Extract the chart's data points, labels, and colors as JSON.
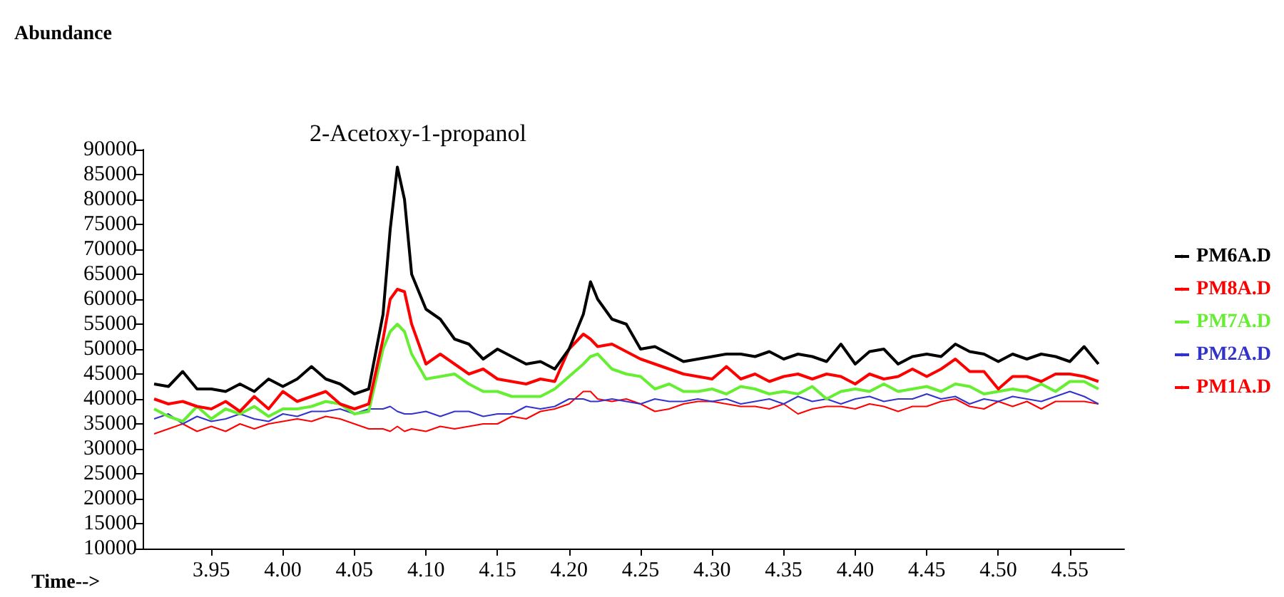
{
  "chart_data": {
    "type": "line",
    "title": "2-Acetoxy-1-propanol",
    "xlabel": "Time-->",
    "ylabel": "Abundance",
    "x": [
      3.91,
      3.92,
      3.93,
      3.94,
      3.95,
      3.96,
      3.97,
      3.98,
      3.99,
      4.0,
      4.01,
      4.02,
      4.03,
      4.04,
      4.05,
      4.06,
      4.07,
      4.075,
      4.08,
      4.085,
      4.09,
      4.1,
      4.11,
      4.12,
      4.13,
      4.14,
      4.15,
      4.16,
      4.17,
      4.18,
      4.19,
      4.2,
      4.21,
      4.215,
      4.22,
      4.23,
      4.24,
      4.25,
      4.26,
      4.27,
      4.28,
      4.29,
      4.3,
      4.31,
      4.32,
      4.33,
      4.34,
      4.35,
      4.36,
      4.37,
      4.38,
      4.39,
      4.4,
      4.41,
      4.42,
      4.43,
      4.44,
      4.45,
      4.46,
      4.47,
      4.48,
      4.49,
      4.5,
      4.51,
      4.52,
      4.53,
      4.54,
      4.55,
      4.56,
      4.57
    ],
    "series": [
      {
        "name": "PM6A.D",
        "color": "#000000",
        "values": [
          43000,
          42500,
          45500,
          42000,
          42000,
          41500,
          43000,
          41500,
          44000,
          42500,
          44000,
          46500,
          44000,
          43000,
          41000,
          42000,
          57000,
          74000,
          86500,
          80000,
          65000,
          58000,
          56000,
          52000,
          51000,
          48000,
          50000,
          48500,
          47000,
          47500,
          46000,
          50000,
          57000,
          63500,
          60000,
          56000,
          55000,
          50000,
          50500,
          49000,
          47500,
          48000,
          48500,
          49000,
          49000,
          48500,
          49500,
          48000,
          49000,
          48500,
          47500,
          51000,
          47000,
          49500,
          50000,
          47000,
          48500,
          49000,
          48500,
          51000,
          49500,
          49000,
          47500,
          49000,
          48000,
          49000,
          48500,
          47500,
          50500,
          47000
        ]
      },
      {
        "name": "PM8A.D",
        "color": "#ff0000",
        "values": [
          40000,
          39000,
          39500,
          38500,
          38000,
          39500,
          37500,
          40500,
          38000,
          41500,
          39500,
          40500,
          41500,
          39000,
          38000,
          39000,
          52000,
          60000,
          62000,
          61500,
          55000,
          47000,
          49000,
          47000,
          45000,
          46000,
          44000,
          43500,
          43000,
          44000,
          43500,
          50000,
          53000,
          52000,
          50500,
          51000,
          49500,
          48000,
          47000,
          46000,
          45000,
          44500,
          44000,
          46500,
          44000,
          45000,
          43500,
          44500,
          45000,
          44000,
          45000,
          44500,
          43000,
          45000,
          44000,
          44500,
          46000,
          44500,
          46000,
          48000,
          45500,
          45500,
          42000,
          44500,
          44500,
          43500,
          45000,
          45000,
          44500,
          43500
        ]
      },
      {
        "name": "PM7A.D",
        "color": "#66ee33",
        "values": [
          38000,
          36500,
          35500,
          38500,
          36000,
          38000,
          37000,
          38500,
          36500,
          38000,
          38000,
          38500,
          39500,
          39000,
          37000,
          37500,
          50000,
          53500,
          55000,
          53500,
          49000,
          44000,
          44500,
          45000,
          43000,
          41500,
          41500,
          40500,
          40500,
          40500,
          42000,
          44500,
          47000,
          48500,
          49000,
          46000,
          45000,
          44500,
          42000,
          43000,
          41500,
          41500,
          42000,
          41000,
          42500,
          42000,
          41000,
          41500,
          41000,
          42500,
          40000,
          41500,
          42000,
          41500,
          43000,
          41500,
          42000,
          42500,
          41500,
          43000,
          42500,
          41000,
          41500,
          42000,
          41500,
          43000,
          41500,
          43500,
          43500,
          42000
        ]
      },
      {
        "name": "PM2A.D",
        "color": "#3333cc",
        "values": [
          36000,
          37000,
          35000,
          36500,
          35500,
          36000,
          37000,
          36000,
          35500,
          37000,
          36500,
          37500,
          37500,
          38000,
          37000,
          38000,
          38000,
          38500,
          37500,
          37000,
          37000,
          37500,
          36500,
          37500,
          37500,
          36500,
          37000,
          37000,
          38500,
          38000,
          38500,
          40000,
          40000,
          39500,
          39500,
          40000,
          39500,
          39000,
          40000,
          39500,
          39500,
          40000,
          39500,
          40000,
          39000,
          39500,
          40000,
          39000,
          40500,
          39500,
          40000,
          39000,
          40000,
          40500,
          39500,
          40000,
          40000,
          41000,
          40000,
          40500,
          39000,
          40000,
          39500,
          40500,
          40000,
          39500,
          40500,
          41500,
          40500,
          39000
        ]
      },
      {
        "name": "PM1A.D",
        "color": "#ff0000",
        "values": [
          33000,
          34000,
          35000,
          33500,
          34500,
          33500,
          35000,
          34000,
          35000,
          35500,
          36000,
          35500,
          36500,
          36000,
          35000,
          34000,
          34000,
          33500,
          34500,
          33500,
          34000,
          33500,
          34500,
          34000,
          34500,
          35000,
          35000,
          36500,
          36000,
          37500,
          38000,
          39000,
          41500,
          41500,
          40000,
          39500,
          40000,
          39000,
          37500,
          38000,
          39000,
          39500,
          39500,
          39000,
          38500,
          38500,
          38000,
          39000,
          37000,
          38000,
          38500,
          38500,
          38000,
          39000,
          38500,
          37500,
          38500,
          38500,
          39500,
          40000,
          38500,
          38000,
          39500,
          38500,
          39500,
          38000,
          39500,
          39500,
          39500,
          39000
        ]
      }
    ],
    "xlim": [
      3.902,
      4.588
    ],
    "xticks": [
      3.95,
      {
        "value": 4.0,
        "label": "4.00"
      },
      4.05,
      {
        "value": 4.1,
        "label": "4.10"
      },
      4.15,
      {
        "value": 4.2,
        "label": "4.20"
      },
      4.25,
      {
        "value": 4.3,
        "label": "4.30"
      },
      4.35,
      {
        "value": 4.4,
        "label": "4.40"
      },
      4.45,
      {
        "value": 4.5,
        "label": "4.50"
      },
      4.55
    ],
    "ylim": [
      10000,
      90000
    ],
    "yticks": [
      10000,
      15000,
      20000,
      25000,
      30000,
      35000,
      40000,
      45000,
      50000,
      55000,
      60000,
      65000,
      70000,
      75000,
      80000,
      85000,
      90000
    ],
    "grid": false,
    "legend": "right",
    "line_style": "solid",
    "marker": "none"
  }
}
